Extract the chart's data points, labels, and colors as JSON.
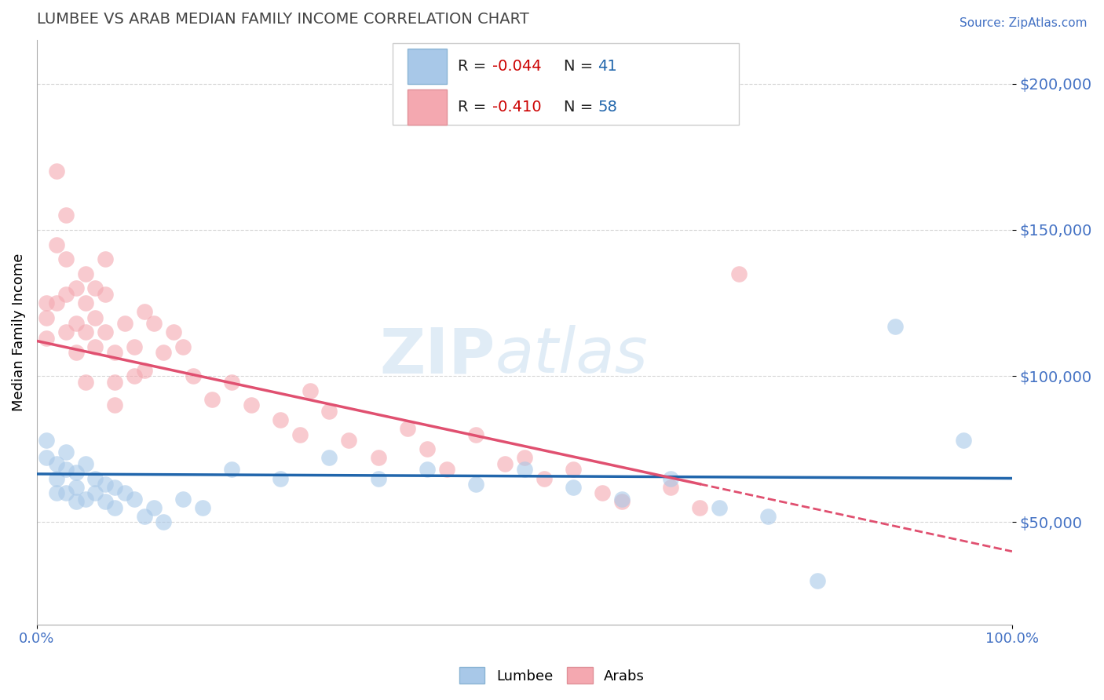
{
  "title": "LUMBEE VS ARAB MEDIAN FAMILY INCOME CORRELATION CHART",
  "source_text": "Source: ZipAtlas.com",
  "ylabel": "Median Family Income",
  "xlim": [
    0,
    1
  ],
  "ylim": [
    15000,
    215000
  ],
  "yticks": [
    50000,
    100000,
    150000,
    200000
  ],
  "ytick_labels": [
    "$50,000",
    "$100,000",
    "$150,000",
    "$200,000"
  ],
  "xticks": [
    0.0,
    1.0
  ],
  "xtick_labels": [
    "0.0%",
    "100.0%"
  ],
  "lumbee_color": "#a8c8e8",
  "arab_color": "#f4a8b0",
  "lumbee_line_color": "#2166ac",
  "arab_line_color": "#e05070",
  "lumbee_R": -0.044,
  "lumbee_N": 41,
  "arab_R": -0.41,
  "arab_N": 58,
  "watermark_zip": "ZIP",
  "watermark_atlas": "atlas",
  "grid_color": "#cccccc",
  "tick_color": "#4472c4",
  "lumbee_x": [
    0.01,
    0.01,
    0.02,
    0.02,
    0.02,
    0.03,
    0.03,
    0.03,
    0.04,
    0.04,
    0.04,
    0.05,
    0.05,
    0.06,
    0.06,
    0.07,
    0.07,
    0.08,
    0.08,
    0.09,
    0.1,
    0.11,
    0.12,
    0.13,
    0.15,
    0.17,
    0.2,
    0.25,
    0.3,
    0.35,
    0.4,
    0.45,
    0.5,
    0.55,
    0.6,
    0.65,
    0.7,
    0.75,
    0.8,
    0.88,
    0.95
  ],
  "lumbee_y": [
    78000,
    72000,
    70000,
    65000,
    60000,
    74000,
    68000,
    60000,
    67000,
    62000,
    57000,
    70000,
    58000,
    65000,
    60000,
    63000,
    57000,
    62000,
    55000,
    60000,
    58000,
    52000,
    55000,
    50000,
    58000,
    55000,
    68000,
    65000,
    72000,
    65000,
    68000,
    63000,
    68000,
    62000,
    58000,
    65000,
    55000,
    52000,
    30000,
    117000,
    78000
  ],
  "arab_x": [
    0.01,
    0.01,
    0.01,
    0.02,
    0.02,
    0.02,
    0.03,
    0.03,
    0.03,
    0.03,
    0.04,
    0.04,
    0.04,
    0.05,
    0.05,
    0.05,
    0.05,
    0.06,
    0.06,
    0.06,
    0.07,
    0.07,
    0.07,
    0.08,
    0.08,
    0.08,
    0.09,
    0.1,
    0.1,
    0.11,
    0.11,
    0.12,
    0.13,
    0.14,
    0.15,
    0.16,
    0.18,
    0.2,
    0.22,
    0.25,
    0.27,
    0.28,
    0.3,
    0.32,
    0.35,
    0.38,
    0.4,
    0.42,
    0.45,
    0.48,
    0.5,
    0.52,
    0.55,
    0.58,
    0.6,
    0.65,
    0.68,
    0.72
  ],
  "arab_y": [
    125000,
    120000,
    113000,
    170000,
    145000,
    125000,
    155000,
    140000,
    128000,
    115000,
    130000,
    118000,
    108000,
    135000,
    125000,
    115000,
    98000,
    130000,
    120000,
    110000,
    140000,
    128000,
    115000,
    108000,
    98000,
    90000,
    118000,
    110000,
    100000,
    122000,
    102000,
    118000,
    108000,
    115000,
    110000,
    100000,
    92000,
    98000,
    90000,
    85000,
    80000,
    95000,
    88000,
    78000,
    72000,
    82000,
    75000,
    68000,
    80000,
    70000,
    72000,
    65000,
    68000,
    60000,
    57000,
    62000,
    55000,
    135000
  ],
  "lumbee_trend_intercept": 66500,
  "lumbee_trend_slope": -1500,
  "arab_trend_intercept": 112000,
  "arab_trend_slope": -72000
}
